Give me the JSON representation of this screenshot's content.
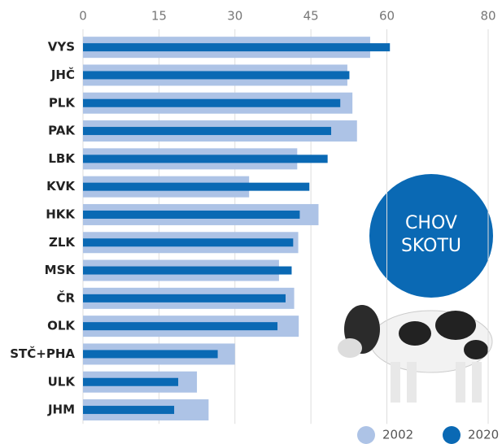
{
  "chart_data": {
    "type": "bar",
    "orientation": "horizontal",
    "annotation": [
      "CHOV",
      "SKOTU"
    ],
    "categories": [
      "VYS",
      "JHČ",
      "PLK",
      "PAK",
      "LBK",
      "KVK",
      "HKK",
      "ZLK",
      "MSK",
      "ČR",
      "OLK",
      "STČ+PHA",
      "ULK",
      "JHM"
    ],
    "series": [
      {
        "name": "2002",
        "color": "#adc3e6",
        "values": [
          56.7,
          52.2,
          53.2,
          54.1,
          42.3,
          32.8,
          46.5,
          42.5,
          38.7,
          41.7,
          42.6,
          30.0,
          22.5,
          24.8
        ]
      },
      {
        "name": "2020",
        "color": "#0a69b4",
        "values": [
          60.6,
          52.6,
          50.8,
          49.0,
          48.3,
          44.7,
          42.8,
          41.5,
          41.2,
          40.0,
          38.4,
          26.6,
          18.8,
          18.0
        ]
      }
    ],
    "xlim": [
      0,
      80
    ],
    "xticks": [
      0,
      15,
      30,
      45,
      60,
      80
    ],
    "grid": true
  }
}
